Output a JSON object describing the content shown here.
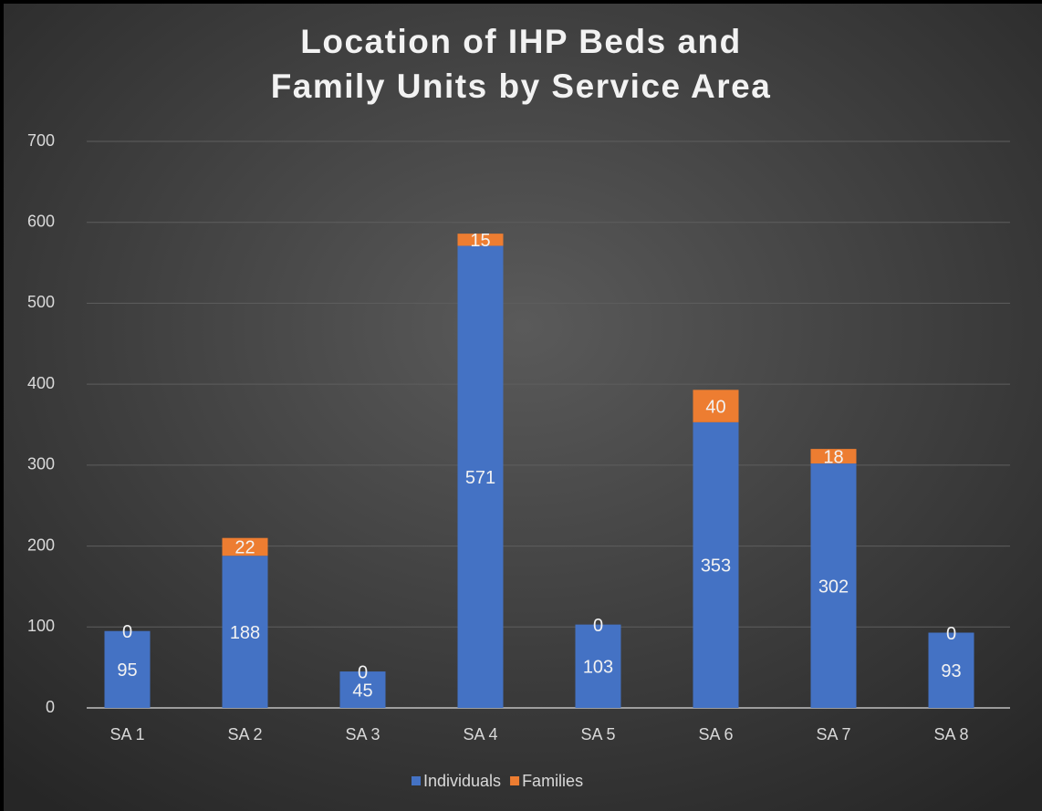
{
  "chart_data": {
    "type": "stacked_bar",
    "title": [
      "Location of IHP Beds and",
      "Family Units by Service Area"
    ],
    "categories": [
      "SA 1",
      "SA 2",
      "SA 3",
      "SA 4",
      "SA 5",
      "SA 6",
      "SA 7",
      "SA 8"
    ],
    "series": [
      {
        "name": "Individuals",
        "color": "#4472c4",
        "values": [
          95,
          188,
          45,
          571,
          103,
          353,
          302,
          93
        ]
      },
      {
        "name": "Families",
        "color": "#ed7d31",
        "values": [
          0,
          22,
          0,
          15,
          0,
          40,
          18,
          0
        ]
      }
    ],
    "ylim": [
      0,
      700
    ],
    "yticks": [
      0,
      100,
      200,
      300,
      400,
      500,
      600,
      700
    ],
    "grid": true,
    "legend": "bottom"
  }
}
